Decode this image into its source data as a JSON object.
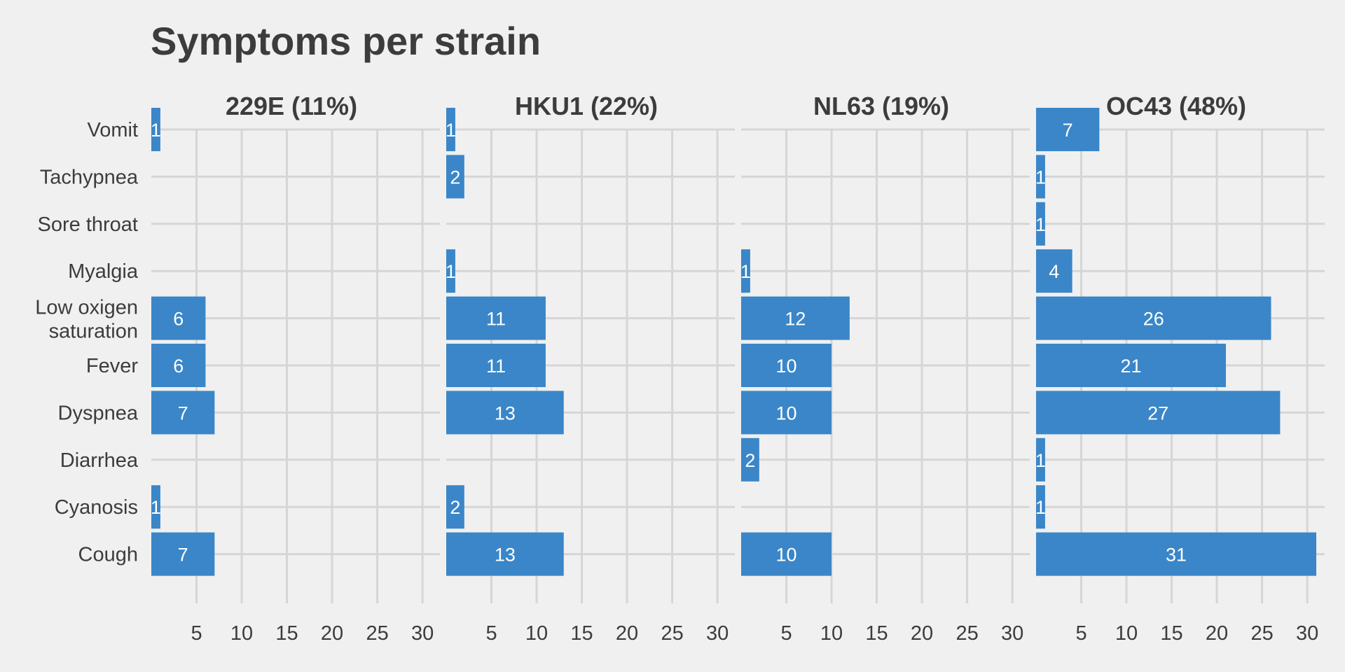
{
  "colors": {
    "background": "#f0f0f0",
    "bar": "#3a86c8",
    "grid": "#d6d6d6",
    "text": "#3c3c3c",
    "bar_label": "#ffffff"
  },
  "chart_data": {
    "type": "bar",
    "orientation": "horizontal",
    "faceted": true,
    "title": "Symptoms per strain",
    "grid": true,
    "categories": [
      "Vomit",
      "Tachypnea",
      "Sore throat",
      "Myalgia",
      "Low oxigen\nsaturation",
      "Fever",
      "Dyspnea",
      "Diarrhea",
      "Cyanosis",
      "Cough"
    ],
    "xlim": [
      0,
      31
    ],
    "xticks": [
      5,
      10,
      15,
      20,
      25,
      30
    ],
    "series": [
      {
        "name": "229E (11%)",
        "values": [
          1,
          null,
          null,
          null,
          6,
          6,
          7,
          null,
          1,
          7
        ]
      },
      {
        "name": "HKU1 (22%)",
        "values": [
          1,
          2,
          null,
          1,
          11,
          11,
          13,
          null,
          2,
          13
        ]
      },
      {
        "name": "NL63 (19%)",
        "values": [
          null,
          null,
          null,
          1,
          12,
          10,
          10,
          2,
          null,
          10
        ]
      },
      {
        "name": "OC43 (48%)",
        "values": [
          7,
          1,
          1,
          4,
          26,
          21,
          27,
          1,
          1,
          31
        ]
      }
    ]
  }
}
